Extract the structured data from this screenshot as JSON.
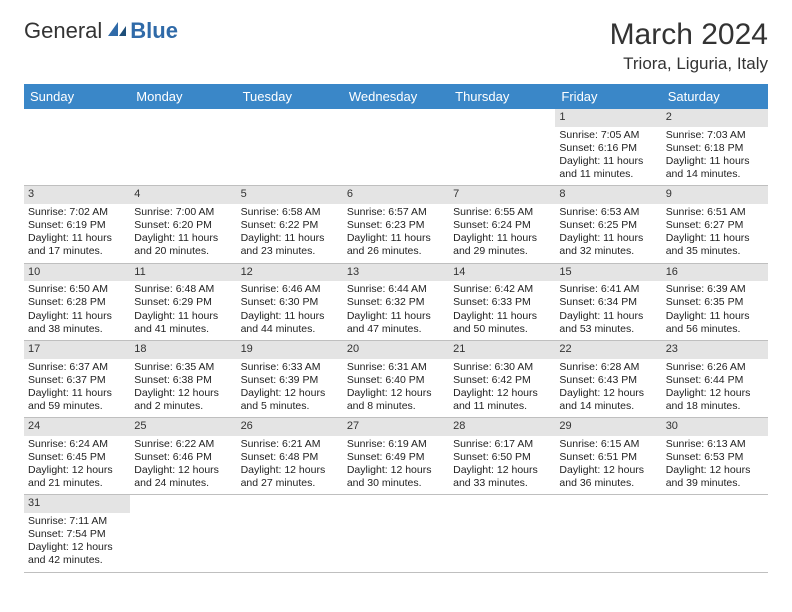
{
  "logo": {
    "text1": "General",
    "text2": "Blue"
  },
  "title": "March 2024",
  "location": "Triora, Liguria, Italy",
  "colors": {
    "header_bg": "#3a87c8",
    "header_text": "#ffffff",
    "daynum_bg": "#e4e4e4",
    "border": "#bfbfbf",
    "text": "#222222",
    "logo_blue": "#2f6aa8"
  },
  "day_headers": [
    "Sunday",
    "Monday",
    "Tuesday",
    "Wednesday",
    "Thursday",
    "Friday",
    "Saturday"
  ],
  "weeks": [
    [
      null,
      null,
      null,
      null,
      null,
      {
        "n": "1",
        "sr": "Sunrise: 7:05 AM",
        "ss": "Sunset: 6:16 PM",
        "d1": "Daylight: 11 hours",
        "d2": "and 11 minutes."
      },
      {
        "n": "2",
        "sr": "Sunrise: 7:03 AM",
        "ss": "Sunset: 6:18 PM",
        "d1": "Daylight: 11 hours",
        "d2": "and 14 minutes."
      }
    ],
    [
      {
        "n": "3",
        "sr": "Sunrise: 7:02 AM",
        "ss": "Sunset: 6:19 PM",
        "d1": "Daylight: 11 hours",
        "d2": "and 17 minutes."
      },
      {
        "n": "4",
        "sr": "Sunrise: 7:00 AM",
        "ss": "Sunset: 6:20 PM",
        "d1": "Daylight: 11 hours",
        "d2": "and 20 minutes."
      },
      {
        "n": "5",
        "sr": "Sunrise: 6:58 AM",
        "ss": "Sunset: 6:22 PM",
        "d1": "Daylight: 11 hours",
        "d2": "and 23 minutes."
      },
      {
        "n": "6",
        "sr": "Sunrise: 6:57 AM",
        "ss": "Sunset: 6:23 PM",
        "d1": "Daylight: 11 hours",
        "d2": "and 26 minutes."
      },
      {
        "n": "7",
        "sr": "Sunrise: 6:55 AM",
        "ss": "Sunset: 6:24 PM",
        "d1": "Daylight: 11 hours",
        "d2": "and 29 minutes."
      },
      {
        "n": "8",
        "sr": "Sunrise: 6:53 AM",
        "ss": "Sunset: 6:25 PM",
        "d1": "Daylight: 11 hours",
        "d2": "and 32 minutes."
      },
      {
        "n": "9",
        "sr": "Sunrise: 6:51 AM",
        "ss": "Sunset: 6:27 PM",
        "d1": "Daylight: 11 hours",
        "d2": "and 35 minutes."
      }
    ],
    [
      {
        "n": "10",
        "sr": "Sunrise: 6:50 AM",
        "ss": "Sunset: 6:28 PM",
        "d1": "Daylight: 11 hours",
        "d2": "and 38 minutes."
      },
      {
        "n": "11",
        "sr": "Sunrise: 6:48 AM",
        "ss": "Sunset: 6:29 PM",
        "d1": "Daylight: 11 hours",
        "d2": "and 41 minutes."
      },
      {
        "n": "12",
        "sr": "Sunrise: 6:46 AM",
        "ss": "Sunset: 6:30 PM",
        "d1": "Daylight: 11 hours",
        "d2": "and 44 minutes."
      },
      {
        "n": "13",
        "sr": "Sunrise: 6:44 AM",
        "ss": "Sunset: 6:32 PM",
        "d1": "Daylight: 11 hours",
        "d2": "and 47 minutes."
      },
      {
        "n": "14",
        "sr": "Sunrise: 6:42 AM",
        "ss": "Sunset: 6:33 PM",
        "d1": "Daylight: 11 hours",
        "d2": "and 50 minutes."
      },
      {
        "n": "15",
        "sr": "Sunrise: 6:41 AM",
        "ss": "Sunset: 6:34 PM",
        "d1": "Daylight: 11 hours",
        "d2": "and 53 minutes."
      },
      {
        "n": "16",
        "sr": "Sunrise: 6:39 AM",
        "ss": "Sunset: 6:35 PM",
        "d1": "Daylight: 11 hours",
        "d2": "and 56 minutes."
      }
    ],
    [
      {
        "n": "17",
        "sr": "Sunrise: 6:37 AM",
        "ss": "Sunset: 6:37 PM",
        "d1": "Daylight: 11 hours",
        "d2": "and 59 minutes."
      },
      {
        "n": "18",
        "sr": "Sunrise: 6:35 AM",
        "ss": "Sunset: 6:38 PM",
        "d1": "Daylight: 12 hours",
        "d2": "and 2 minutes."
      },
      {
        "n": "19",
        "sr": "Sunrise: 6:33 AM",
        "ss": "Sunset: 6:39 PM",
        "d1": "Daylight: 12 hours",
        "d2": "and 5 minutes."
      },
      {
        "n": "20",
        "sr": "Sunrise: 6:31 AM",
        "ss": "Sunset: 6:40 PM",
        "d1": "Daylight: 12 hours",
        "d2": "and 8 minutes."
      },
      {
        "n": "21",
        "sr": "Sunrise: 6:30 AM",
        "ss": "Sunset: 6:42 PM",
        "d1": "Daylight: 12 hours",
        "d2": "and 11 minutes."
      },
      {
        "n": "22",
        "sr": "Sunrise: 6:28 AM",
        "ss": "Sunset: 6:43 PM",
        "d1": "Daylight: 12 hours",
        "d2": "and 14 minutes."
      },
      {
        "n": "23",
        "sr": "Sunrise: 6:26 AM",
        "ss": "Sunset: 6:44 PM",
        "d1": "Daylight: 12 hours",
        "d2": "and 18 minutes."
      }
    ],
    [
      {
        "n": "24",
        "sr": "Sunrise: 6:24 AM",
        "ss": "Sunset: 6:45 PM",
        "d1": "Daylight: 12 hours",
        "d2": "and 21 minutes."
      },
      {
        "n": "25",
        "sr": "Sunrise: 6:22 AM",
        "ss": "Sunset: 6:46 PM",
        "d1": "Daylight: 12 hours",
        "d2": "and 24 minutes."
      },
      {
        "n": "26",
        "sr": "Sunrise: 6:21 AM",
        "ss": "Sunset: 6:48 PM",
        "d1": "Daylight: 12 hours",
        "d2": "and 27 minutes."
      },
      {
        "n": "27",
        "sr": "Sunrise: 6:19 AM",
        "ss": "Sunset: 6:49 PM",
        "d1": "Daylight: 12 hours",
        "d2": "and 30 minutes."
      },
      {
        "n": "28",
        "sr": "Sunrise: 6:17 AM",
        "ss": "Sunset: 6:50 PM",
        "d1": "Daylight: 12 hours",
        "d2": "and 33 minutes."
      },
      {
        "n": "29",
        "sr": "Sunrise: 6:15 AM",
        "ss": "Sunset: 6:51 PM",
        "d1": "Daylight: 12 hours",
        "d2": "and 36 minutes."
      },
      {
        "n": "30",
        "sr": "Sunrise: 6:13 AM",
        "ss": "Sunset: 6:53 PM",
        "d1": "Daylight: 12 hours",
        "d2": "and 39 minutes."
      }
    ],
    [
      {
        "n": "31",
        "sr": "Sunrise: 7:11 AM",
        "ss": "Sunset: 7:54 PM",
        "d1": "Daylight: 12 hours",
        "d2": "and 42 minutes."
      },
      null,
      null,
      null,
      null,
      null,
      null
    ]
  ]
}
